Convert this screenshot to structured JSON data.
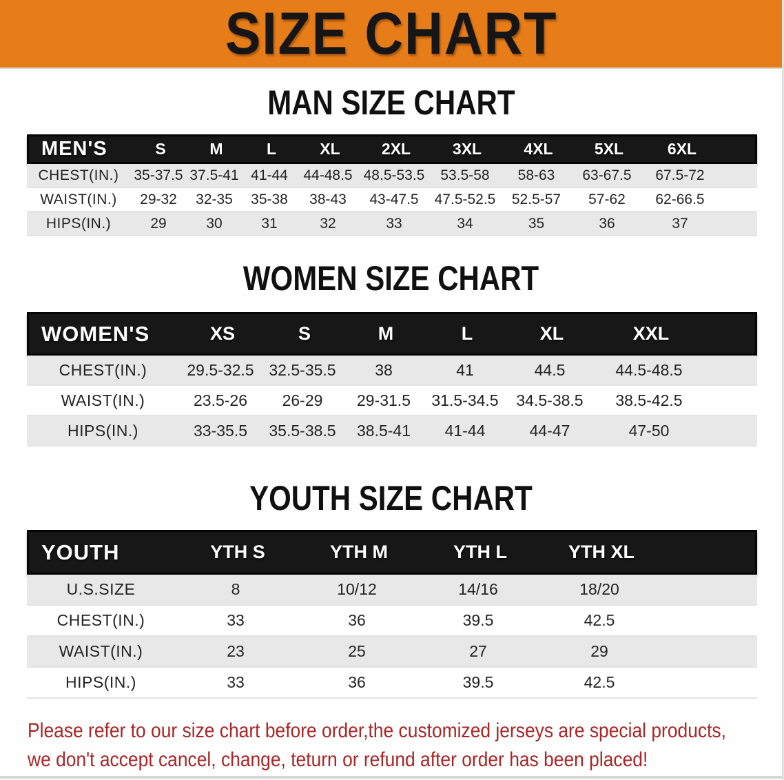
{
  "banner": {
    "title": "SIZE CHART"
  },
  "sections": {
    "men": {
      "heading": "MAN SIZE CHART"
    },
    "women": {
      "heading": "WOMEN SIZE CHART"
    },
    "youth": {
      "heading": "YOUTH SIZE CHART"
    }
  },
  "tables": {
    "men": {
      "header": [
        "MEN'S",
        "S",
        "M",
        "L",
        "XL",
        "2XL",
        "3XL",
        "4XL",
        "5XL",
        "6XL"
      ],
      "rows": [
        {
          "label": "CHEST(IN.)",
          "values": [
            "35-37.5",
            "37.5-41",
            "41-44",
            "44-48.5",
            "48.5-53.5",
            "53.5-58",
            "58-63",
            "63-67.5",
            "67.5-72"
          ]
        },
        {
          "label": "WAIST(IN.)",
          "values": [
            "29-32",
            "32-35",
            "35-38",
            "38-43",
            "43-47.5",
            "47.5-52.5",
            "52.5-57",
            "57-62",
            "62-66.5"
          ]
        },
        {
          "label": "HIPS(IN.)",
          "values": [
            "29",
            "30",
            "31",
            "32",
            "33",
            "34",
            "35",
            "36",
            "37"
          ]
        }
      ]
    },
    "women": {
      "header": [
        "WOMEN'S",
        "XS",
        "S",
        "M",
        "L",
        "XL",
        "XXL"
      ],
      "rows": [
        {
          "label": "CHEST(IN.)",
          "values": [
            "29.5-32.5",
            "32.5-35.5",
            "38",
            "41",
            "44.5",
            "44.5-48.5"
          ]
        },
        {
          "label": "WAIST(IN.)",
          "values": [
            "23.5-26",
            "26-29",
            "29-31.5",
            "31.5-34.5",
            "34.5-38.5",
            "38.5-42.5"
          ]
        },
        {
          "label": "HIPS(IN.)",
          "values": [
            "33-35.5",
            "35.5-38.5",
            "38.5-41",
            "41-44",
            "44-47",
            "47-50"
          ]
        }
      ]
    },
    "youth": {
      "header": [
        "YOUTH",
        "YTH S",
        "YTH M",
        "YTH L",
        "YTH XL"
      ],
      "rows": [
        {
          "label": "U.S.SIZE",
          "values": [
            "8",
            "10/12",
            "14/16",
            "18/20"
          ]
        },
        {
          "label": "CHEST(IN.)",
          "values": [
            "33",
            "36",
            "39.5",
            "42.5"
          ]
        },
        {
          "label": "WAIST(IN.)",
          "values": [
            "23",
            "25",
            "27",
            "29"
          ]
        },
        {
          "label": "HIPS(IN.)",
          "values": [
            "33",
            "36",
            "39.5",
            "42.5"
          ]
        }
      ]
    }
  },
  "disclaimer": {
    "line1": "Please refer to our size chart before order,the customized jerseys are special products,",
    "line2": "we don't accept cancel, change, teturn or refund after order has been placed!"
  },
  "colors": {
    "banner_bg": "#E67D18",
    "header_bar": "#171717",
    "stripe_gray": "#E8E8E8",
    "disclaimer_red": "#A82626"
  }
}
